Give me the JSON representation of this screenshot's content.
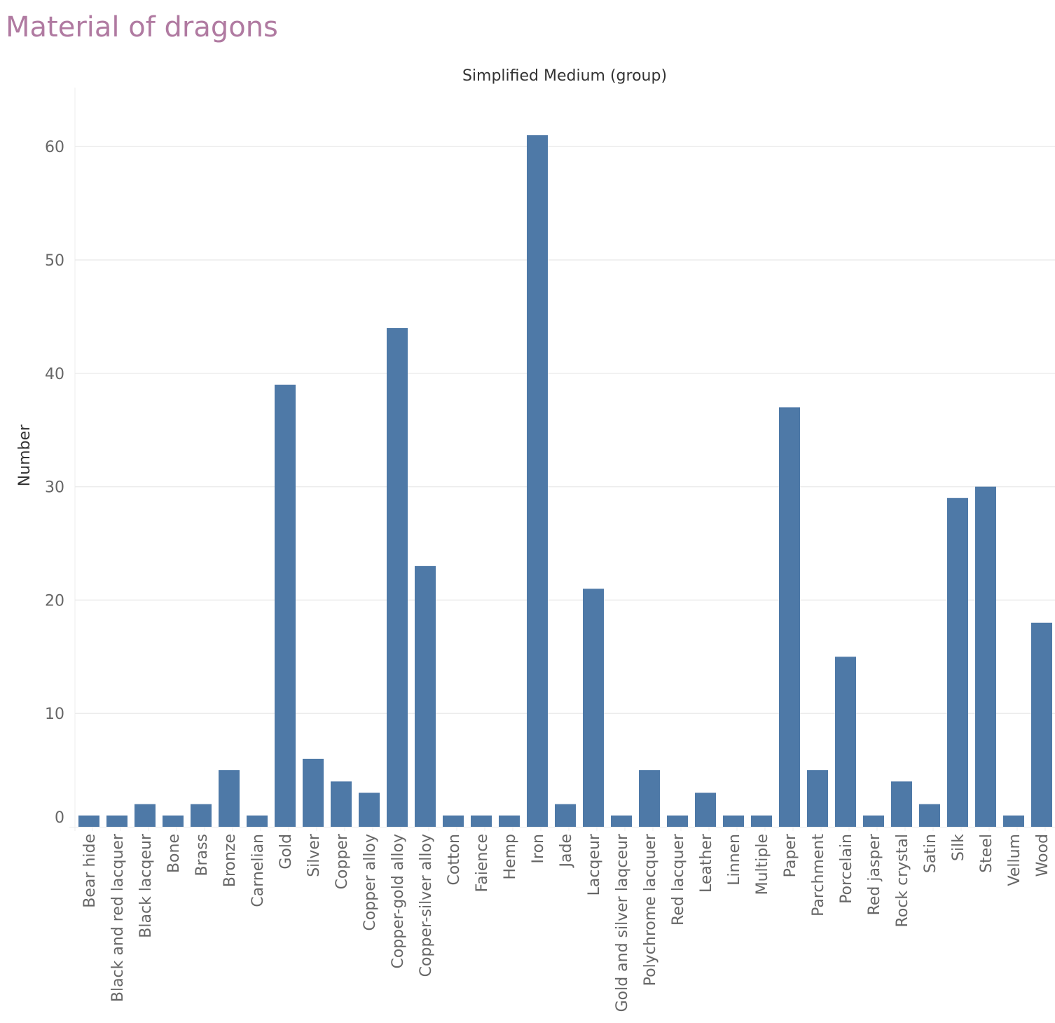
{
  "page": {
    "title": "Material of dragons"
  },
  "colors": {
    "title": "#b07aa1",
    "bar": "#4e79a7",
    "grid": "#ececec",
    "tick_text": "#666666",
    "axis_title_text": "#333333"
  },
  "chart_data": {
    "type": "bar",
    "title": "Material of dragons",
    "xlabel": "Simplified Medium (group)",
    "ylabel": "Number",
    "ylim": [
      0,
      65
    ],
    "yticks": [
      0,
      10,
      20,
      30,
      40,
      50,
      60
    ],
    "grid": true,
    "categories": [
      "Bear hide",
      "Black and red lacquer",
      "Black lacqeur",
      "Bone",
      "Brass",
      "Bronze",
      "Carnelian",
      "Gold",
      "Silver",
      "Copper",
      "Copper alloy",
      "Copper-gold alloy",
      "Copper-silver alloy",
      "Cotton",
      "Faience",
      "Hemp",
      "Iron",
      "Jade",
      "Lacqeur",
      "Gold and silver laqceur",
      "Polychrome lacquer",
      "Red lacquer",
      "Leather",
      "Linnen",
      "Multiple",
      "Paper",
      "Parchment",
      "Porcelain",
      "Red jasper",
      "Rock crystal",
      "Satin",
      "Silk",
      "Steel",
      "Vellum",
      "Wood"
    ],
    "values": [
      1,
      1,
      2,
      1,
      2,
      5,
      1,
      39,
      6,
      4,
      3,
      44,
      23,
      1,
      1,
      1,
      61,
      2,
      21,
      1,
      5,
      1,
      3,
      1,
      1,
      37,
      5,
      15,
      1,
      4,
      2,
      29,
      30,
      1,
      18
    ]
  }
}
